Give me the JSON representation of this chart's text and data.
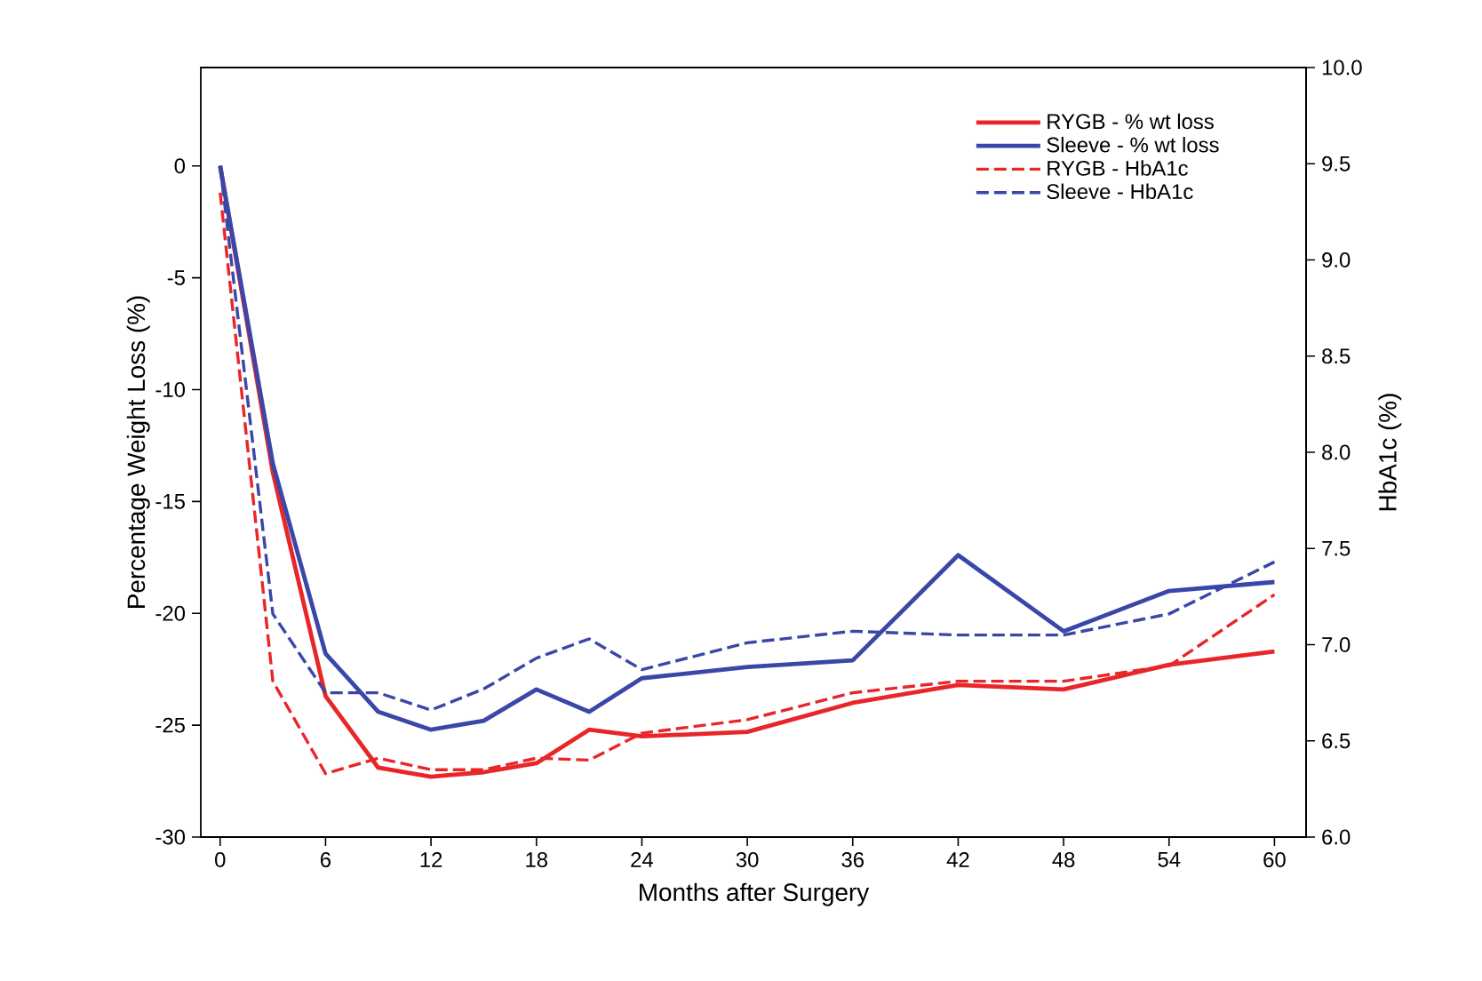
{
  "chart_data": {
    "type": "line",
    "xlabel": "Months after Surgery",
    "ylabel": "Percentage Weight Loss (%)",
    "y2label": "HbA1c (%)",
    "x": [
      0,
      3,
      6,
      9,
      12,
      15,
      18,
      21,
      24,
      30,
      36,
      42,
      48,
      54,
      60
    ],
    "xlim": [
      -1.1,
      61.8
    ],
    "xticks": [
      0,
      6,
      12,
      18,
      24,
      30,
      36,
      42,
      48,
      54,
      60
    ],
    "ylim": [
      -30,
      4.4
    ],
    "yticks": [
      -30,
      -25,
      -20,
      -15,
      -10,
      -5,
      0
    ],
    "y2lim": [
      6.0,
      10.0
    ],
    "y2ticks": [
      {
        "value": 6.0,
        "label": "6.0"
      },
      6.5,
      {
        "value": 7.0,
        "label": "7.0"
      },
      7.5,
      {
        "value": 8.0,
        "label": "8.0"
      },
      8.5,
      {
        "value": 9.0,
        "label": "9.0"
      },
      9.5,
      {
        "value": 10.0,
        "label": "10.0"
      }
    ],
    "legend": "top right",
    "marker": "none",
    "grid": false,
    "series": [
      {
        "name": "RYGB - % wt loss",
        "color": "#e8262a",
        "axis": "y",
        "line_style": "solid",
        "values": [
          0,
          -13.7,
          -23.7,
          -26.9,
          -27.3,
          -27.1,
          -26.7,
          -25.2,
          -25.5,
          -25.3,
          -24.0,
          -23.2,
          -23.4,
          -22.3,
          -21.7
        ]
      },
      {
        "name": "Sleeve - % wt loss",
        "color": "#3a46a8",
        "axis": "y",
        "line_style": "solid",
        "values": [
          0,
          -13.3,
          -21.8,
          -24.4,
          -25.2,
          -24.8,
          -23.4,
          -24.4,
          -22.9,
          -22.4,
          -22.1,
          -17.4,
          -20.8,
          -19.0,
          -18.6
        ]
      },
      {
        "name": "RYGB - HbA1c",
        "color": "#e8262a",
        "axis": "y2",
        "line_style": "dashed",
        "values": [
          9.35,
          6.81,
          6.33,
          6.41,
          6.35,
          6.35,
          6.41,
          6.4,
          6.54,
          6.61,
          6.75,
          6.81,
          6.81,
          6.89,
          7.26
        ]
      },
      {
        "name": "Sleeve - HbA1c",
        "color": "#3a46a8",
        "axis": "y2",
        "line_style": "dashed",
        "values": [
          9.49,
          7.16,
          6.75,
          6.75,
          6.66,
          6.77,
          6.93,
          7.03,
          6.87,
          7.01,
          7.07,
          7.05,
          7.05,
          7.16,
          7.43
        ]
      }
    ]
  }
}
